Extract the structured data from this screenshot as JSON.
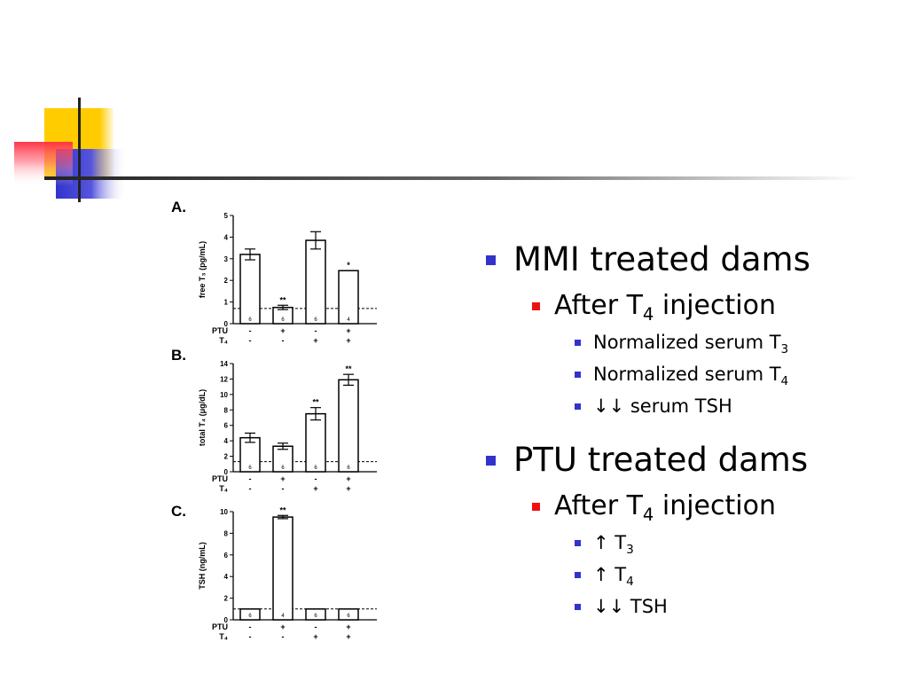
{
  "colors": {
    "level1_marker": "#3333cc",
    "level2_marker": "#ee1111",
    "level3_marker": "#3333cc",
    "deco_yellow": "#ffcc00",
    "deco_red": "#ff3344",
    "deco_blue": "#3333cc",
    "rule_line": "#222222"
  },
  "bullets": {
    "mmi": {
      "label": "MMI treated dams",
      "after_pre": "After T",
      "after_sub": "4",
      "after_post": " injection",
      "items": [
        {
          "pre": "Normalized serum T",
          "sub": "3"
        },
        {
          "pre": "Normalized serum T",
          "sub": "4"
        },
        {
          "pre": "↓↓ serum TSH",
          "sub": ""
        }
      ]
    },
    "ptu": {
      "label": "PTU treated dams",
      "after_pre": "After T",
      "after_sub": "4",
      "after_post": " injection",
      "items": [
        {
          "pre": "↑ T",
          "sub": "3"
        },
        {
          "pre": "↑ T",
          "sub": "4"
        },
        {
          "pre": "↓↓ TSH",
          "sub": ""
        }
      ]
    }
  },
  "chart_data": [
    {
      "type": "bar",
      "panel": "A.",
      "ylabel": "free T₃ (pg/mL)",
      "ylim": [
        0,
        5
      ],
      "yticks": [
        0,
        1,
        2,
        3,
        4,
        5
      ],
      "ytick_labels": [
        "0",
        "1",
        "2",
        "3",
        "4",
        "5"
      ],
      "reference_line": 0.7,
      "groups": {
        "PTU": [
          "-",
          "+",
          "-",
          "+"
        ],
        "T₄": [
          "-",
          "-",
          "+",
          "+"
        ]
      },
      "group_labels": [
        "PTU",
        "T₄"
      ],
      "values": [
        3.2,
        0.75,
        3.85,
        2.45
      ],
      "errors": [
        0.25,
        0.1,
        0.4,
        0
      ],
      "n": [
        "6",
        "6",
        "6",
        "4"
      ],
      "significance": [
        "",
        "**",
        "",
        "*"
      ]
    },
    {
      "type": "bar",
      "panel": "B.",
      "ylabel": "total T₄ (μg/dL)",
      "ylim": [
        0,
        14
      ],
      "yticks": [
        0,
        2,
        4,
        6,
        8,
        10,
        12,
        14
      ],
      "ytick_labels": [
        "0",
        "2",
        "4",
        "6",
        "8",
        "10",
        "12",
        "14"
      ],
      "reference_line": 1.3,
      "groups": {
        "PTU": [
          "-",
          "+",
          "-",
          "+"
        ],
        "T₄": [
          "-",
          "-",
          "+",
          "+"
        ]
      },
      "group_labels": [
        "PTU",
        "T₄"
      ],
      "values": [
        4.4,
        3.3,
        7.5,
        11.9
      ],
      "errors": [
        0.6,
        0.4,
        0.8,
        0.7
      ],
      "n": [
        "6",
        "6",
        "6",
        "6"
      ],
      "significance": [
        "",
        "",
        "**",
        "**"
      ]
    },
    {
      "type": "bar",
      "panel": "C.",
      "ylabel": "TSH (ng/mL)",
      "ylim": [
        0,
        10
      ],
      "yticks": [
        0,
        2,
        4,
        6,
        8,
        10
      ],
      "ytick_labels": [
        "0",
        "2",
        "4",
        "6",
        "8",
        "10"
      ],
      "reference_line": 1.0,
      "groups": {
        "PTU": [
          "-",
          "+",
          "-",
          "+"
        ],
        "T₄": [
          "-",
          "-",
          "+",
          "+"
        ]
      },
      "group_labels": [
        "PTU",
        "T₄"
      ],
      "values": [
        1.0,
        9.5,
        1.0,
        1.0
      ],
      "errors": [
        0,
        0.15,
        0,
        0
      ],
      "n": [
        "6",
        "4",
        "6",
        "6"
      ],
      "significance": [
        "",
        "**",
        "",
        ""
      ]
    }
  ]
}
